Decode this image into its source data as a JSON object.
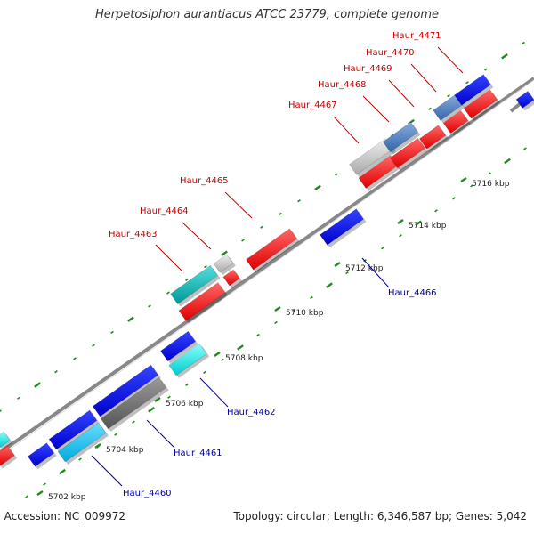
{
  "map": {
    "title": "Herpetosiphon aurantiacus ATCC 23779, complete genome",
    "footer_left": ", Accession: NC_009972",
    "footer_right": "Topology: circular; Length: 6,346,587 bp; Genes: 5,042",
    "colors": {
      "plus_strand": "#ff0000",
      "minus_strand": "#0000ee",
      "backbone": "#888888",
      "tick": "#228822",
      "plus_label": "#cc0000",
      "minus_label": "#0000aa"
    },
    "scale_labels": [
      "5702 kbp",
      "5704 kbp",
      "5706 kbp",
      "5708 kbp",
      "5710 kbp",
      "5712 kbp",
      "5714 kbp",
      "5716 kbp"
    ],
    "gene_labels_plus": [
      "Haur_4463",
      "Haur_4464",
      "Haur_4465",
      "Haur_4467",
      "Haur_4468",
      "Haur_4469",
      "Haur_4470",
      "Haur_4471"
    ],
    "gene_labels_minus": [
      "Haur_4460",
      "Haur_4461",
      "Haur_4462",
      "Haur_4466"
    ]
  }
}
